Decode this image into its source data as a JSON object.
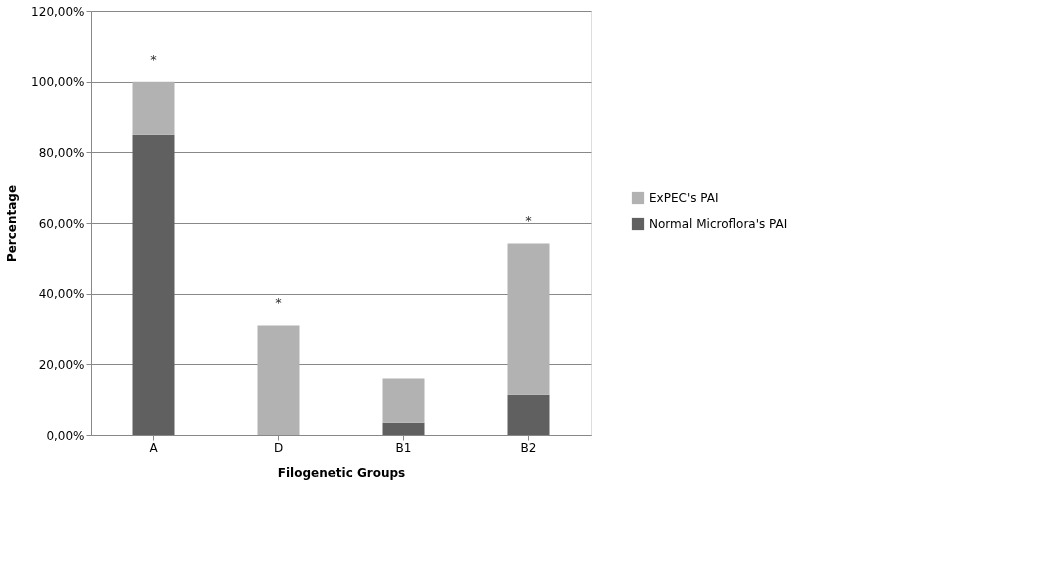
{
  "chart_data": {
    "type": "bar",
    "stacked": true,
    "xlabel": "Filogenetic Groups",
    "ylabel": "Percentage",
    "categories": [
      "A",
      "D",
      "B1",
      "B2"
    ],
    "series": [
      {
        "name": "Normal Microflora's PAI",
        "color": "#606060",
        "values": [
          85,
          0,
          3.5,
          11.4
        ]
      },
      {
        "name": "ExPEC's PAI",
        "color": "#b2b2b2",
        "values": [
          15,
          31,
          12.5,
          42.8
        ]
      }
    ],
    "ylim": [
      0,
      120
    ],
    "yticks": [
      {
        "value": 0,
        "label": "0,00%"
      },
      {
        "value": 20,
        "label": "20,00%"
      },
      {
        "value": 40,
        "label": "40,00%"
      },
      {
        "value": 60,
        "label": "60,00%"
      },
      {
        "value": 80,
        "label": "80,00%"
      },
      {
        "value": 100,
        "label": "100,00%"
      },
      {
        "value": 120,
        "label": "120,00%"
      }
    ],
    "grid": "y",
    "legend": "right",
    "annotations": [
      {
        "text": "*",
        "x": "A",
        "y": 100
      },
      {
        "text": "*",
        "x": "D",
        "y": 31
      },
      {
        "text": "*",
        "x": "B2",
        "y": 54.2
      }
    ]
  }
}
